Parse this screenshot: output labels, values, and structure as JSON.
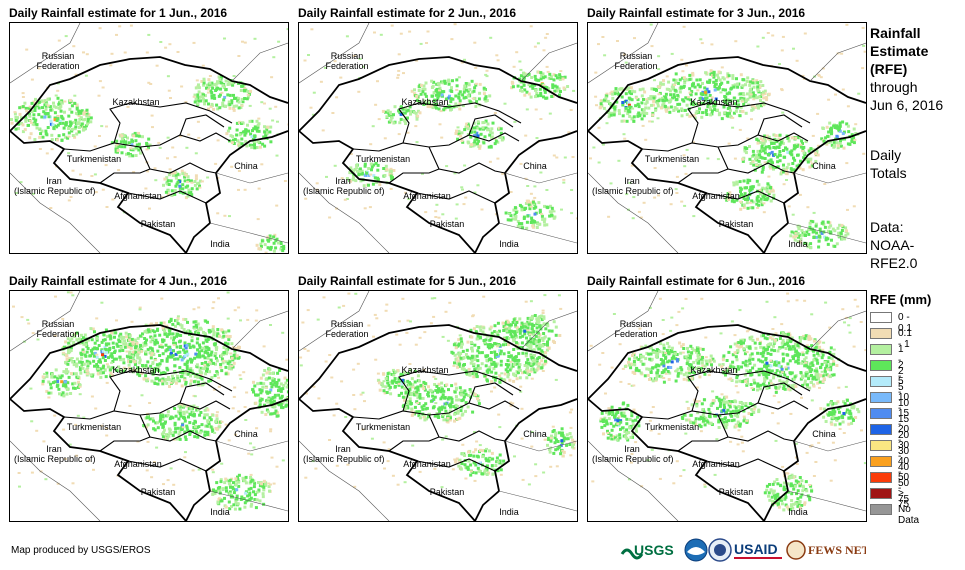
{
  "panels": [
    {
      "title": "Daily Rainfall estimate for 1 Jun., 2016"
    },
    {
      "title": "Daily Rainfall estimate for 2 Jun., 2016"
    },
    {
      "title": "Daily Rainfall estimate for 3 Jun., 2016"
    },
    {
      "title": "Daily Rainfall estimate for 4 Jun., 2016"
    },
    {
      "title": "Daily Rainfall estimate for 5 Jun., 2016"
    },
    {
      "title": "Daily Rainfall estimate for 6 Jun., 2016"
    }
  ],
  "map_labels": {
    "russia": "Russian\nFederation",
    "kazakhstan": "Kazakhstan",
    "turkmenistan": "Turkmenistan",
    "iran": "Iran\n(Islamic Republic of)",
    "afghanistan": "Afghanistan",
    "pakistan": "Pakistan",
    "china": "China",
    "india": "India"
  },
  "side": {
    "title_line1": "Rainfall",
    "title_line2": "Estimate",
    "title_line3": "(RFE)",
    "through": "through",
    "date": "Jun 6, 2016",
    "daily": "Daily",
    "totals": "Totals",
    "data_label": "Data:",
    "data_source1": "NOAA-",
    "data_source2": "RFE2.0"
  },
  "legend": {
    "title": "RFE (mm)",
    "items": [
      {
        "label": "0 - 0.1",
        "color": "#ffffff"
      },
      {
        "label": "0.1 - 1",
        "color": "#f1dcb4"
      },
      {
        "label": "1 - 2",
        "color": "#b4f0a0"
      },
      {
        "label": "2 - 5",
        "color": "#5ee65a"
      },
      {
        "label": "5 - 10",
        "color": "#b4ebfa"
      },
      {
        "label": "10 - 15",
        "color": "#78b9fa"
      },
      {
        "label": "15 - 20",
        "color": "#508cf0"
      },
      {
        "label": "20 - 30",
        "color": "#1e64e6"
      },
      {
        "label": "30 - 40",
        "color": "#fae682"
      },
      {
        "label": "40 - 50",
        "color": "#faa01e"
      },
      {
        "label": "50 - 75",
        "color": "#fa3c0a"
      },
      {
        "label": "> 75",
        "color": "#a01414"
      },
      {
        "label": "No Data",
        "color": "#969696"
      }
    ]
  },
  "footer": "Map produced by USGS/EROS",
  "logos": {
    "usgs": "USGS",
    "usaid": "USAID",
    "fewsnet": "FEWS NET"
  }
}
